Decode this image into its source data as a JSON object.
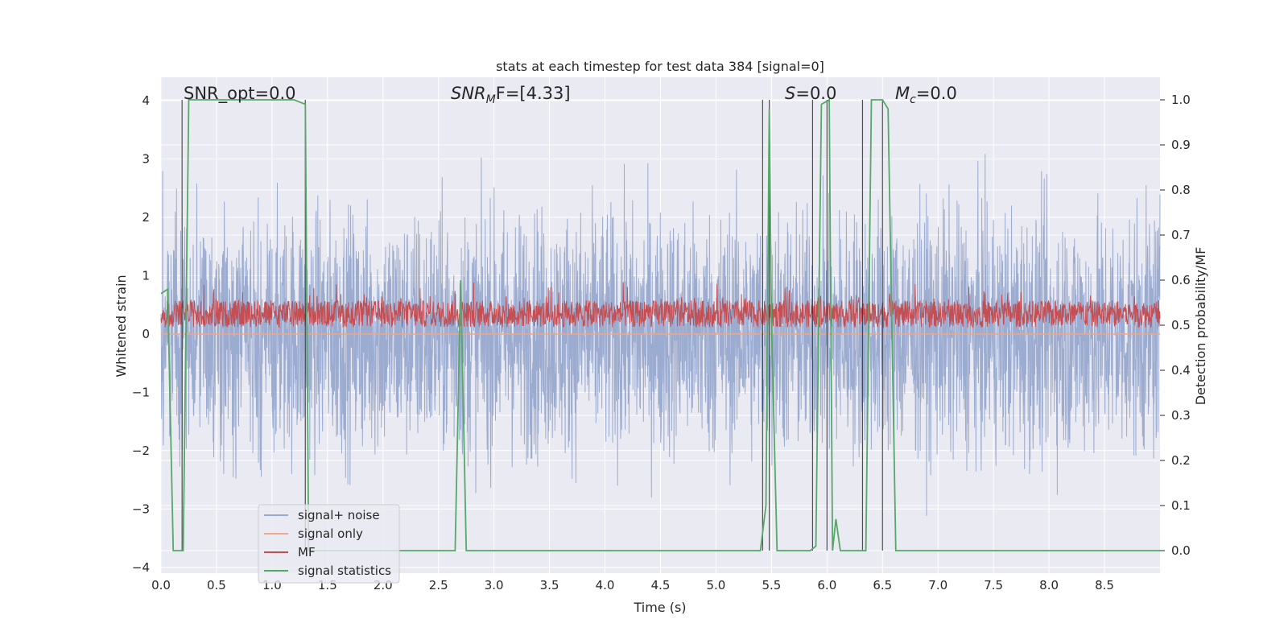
{
  "chart_data": {
    "type": "line",
    "title": "stats at each timestep for test data 384 [signal=0]",
    "xlabel": "Time (s)",
    "ylabel_left": "Whitened strain",
    "ylabel_right": "Detection probability/MF",
    "xlim": [
      0,
      9
    ],
    "ylim_left": [
      -4.1,
      4.4
    ],
    "ylim_right": [
      -0.05,
      1.05
    ],
    "x_ticks": [
      "0.0",
      "0.5",
      "1.0",
      "1.5",
      "2.0",
      "2.5",
      "3.0",
      "3.5",
      "4.0",
      "4.5",
      "5.0",
      "5.5",
      "6.0",
      "6.5",
      "7.0",
      "7.5",
      "8.0",
      "8.5"
    ],
    "y_left_ticks": [
      "4",
      "3",
      "2",
      "1",
      "0",
      "−1",
      "−2",
      "−3",
      "−4"
    ],
    "y_right_ticks": [
      "1.0",
      "0.9",
      "0.8",
      "0.7",
      "0.6",
      "0.5",
      "0.4",
      "0.3",
      "0.2",
      "0.1",
      "0.0"
    ],
    "grid": true,
    "background": "#eaeaf2",
    "annotations": [
      {
        "text": "SNR_opt=0.0",
        "italic_prefix": "",
        "x": 0.19
      },
      {
        "text": "SNR",
        "sub": "M",
        "suffix": "F=[4.33]",
        "x": 2.6
      },
      {
        "text": "S",
        "suffix": "=0.0",
        "x": 5.6
      },
      {
        "text": "M",
        "sub": "c",
        "suffix": "=0.0",
        "x": 6.6
      }
    ],
    "legend": {
      "position": "lower-left",
      "entries": [
        {
          "label": "signal+ noise",
          "color": "#98a9cf"
        },
        {
          "label": "signal only",
          "color": "#e9a98a"
        },
        {
          "label": "MF",
          "color": "#c44e52"
        },
        {
          "label": "signal statistics",
          "color": "#55a868"
        }
      ]
    },
    "series": [
      {
        "name": "signal+ noise",
        "axis": "left",
        "color": "#98a9cf",
        "description_envelope": [
          -3.7,
          4.0
        ]
      },
      {
        "name": "signal only",
        "axis": "left",
        "color": "#e9a98a",
        "constant": 0.0
      },
      {
        "name": "MF",
        "axis": "right",
        "color": "#c44e52",
        "envelope": [
          0.49,
          0.6
        ]
      },
      {
        "name": "signal statistics",
        "axis": "right",
        "color": "#55a868",
        "x": [
          0.0,
          0.06,
          0.11,
          0.2,
          0.25,
          0.3,
          1.2,
          1.3,
          1.33,
          1.36,
          1.4,
          2.6,
          2.65,
          2.7,
          2.75,
          5.4,
          5.45,
          5.48,
          5.5,
          5.55,
          5.85,
          5.9,
          5.95,
          6.02,
          6.05,
          6.08,
          6.12,
          6.35,
          6.4,
          6.5,
          6.55,
          6.62,
          6.65,
          9.0
        ],
        "y": [
          0.57,
          0.58,
          0.0,
          0.0,
          1.0,
          1.0,
          1.0,
          0.99,
          0.0,
          0.0,
          0.0,
          0.0,
          0.0,
          0.6,
          0.0,
          0.0,
          0.1,
          0.98,
          0.5,
          0.0,
          0.0,
          0.01,
          0.99,
          1.0,
          0.0,
          0.07,
          0.0,
          0.0,
          1.0,
          1.0,
          0.98,
          0.0,
          0.0,
          0.0
        ]
      }
    ],
    "vertical_lines": [
      0.19,
      1.3,
      5.42,
      5.48,
      5.87,
      6.0,
      6.32,
      6.5
    ]
  }
}
